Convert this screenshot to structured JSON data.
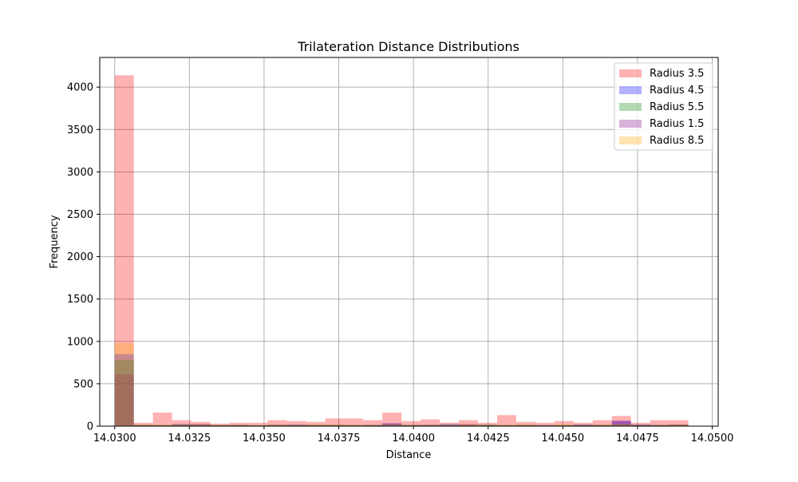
{
  "chart_data": {
    "type": "bar",
    "title": "Trilateration Distance Distributions",
    "xlabel": "Distance",
    "ylabel": "Frequency",
    "xlim": [
      14.0295,
      14.0502
    ],
    "ylim": [
      0,
      4350
    ],
    "xticks": [
      14.03,
      14.0325,
      14.035,
      14.0375,
      14.04,
      14.0425,
      14.045,
      14.0475,
      14.05
    ],
    "xtick_labels": [
      "14.0300",
      "14.0325",
      "14.0350",
      "14.0375",
      "14.0400",
      "14.0425",
      "14.0450",
      "14.0475",
      "14.0500"
    ],
    "yticks": [
      0,
      500,
      1000,
      1500,
      2000,
      2500,
      3000,
      3500,
      4000
    ],
    "ytick_labels": [
      "0",
      "500",
      "1000",
      "1500",
      "2000",
      "2500",
      "3000",
      "3500",
      "4000"
    ],
    "grid": true,
    "legend_position": "top-right",
    "bin_edges": [
      14.03,
      14.03064,
      14.03128,
      14.03192,
      14.03256,
      14.0332,
      14.03384,
      14.03448,
      14.03512,
      14.03576,
      14.0364,
      14.03704,
      14.03768,
      14.03832,
      14.03896,
      14.0396,
      14.04024,
      14.04088,
      14.04152,
      14.04216,
      14.0428,
      14.04344,
      14.04408,
      14.04472,
      14.04536,
      14.046,
      14.04664,
      14.04728,
      14.04792,
      14.04856,
      14.0492
    ],
    "series": [
      {
        "name": "Radius 3.5",
        "color": "#ff0000",
        "alpha": 0.3,
        "values": [
          4140,
          40,
          160,
          70,
          50,
          30,
          40,
          40,
          70,
          60,
          50,
          90,
          90,
          70,
          160,
          60,
          80,
          40,
          70,
          40,
          130,
          50,
          40,
          60,
          40,
          70,
          120,
          40,
          70,
          70
        ]
      },
      {
        "name": "Radius 4.5",
        "color": "#0000ff",
        "alpha": 0.3,
        "values": [
          850,
          15,
          10,
          25,
          20,
          10,
          15,
          10,
          15,
          20,
          15,
          15,
          10,
          15,
          30,
          15,
          15,
          25,
          15,
          15,
          10,
          15,
          15,
          10,
          20,
          15,
          60,
          20,
          15,
          15
        ]
      },
      {
        "name": "Radius 5.5",
        "color": "#008000",
        "alpha": 0.3,
        "values": [
          780,
          15,
          15,
          20,
          15,
          15,
          15,
          10,
          15,
          15,
          15,
          15,
          15,
          15,
          20,
          15,
          15,
          15,
          15,
          20,
          15,
          15,
          10,
          15,
          15,
          15,
          25,
          15,
          15,
          20
        ]
      },
      {
        "name": "Radius 1.5",
        "color": "#800080",
        "alpha": 0.3,
        "values": [
          610,
          10,
          10,
          15,
          25,
          10,
          10,
          10,
          15,
          10,
          10,
          10,
          10,
          10,
          35,
          10,
          15,
          10,
          25,
          10,
          10,
          10,
          10,
          10,
          15,
          10,
          65,
          15,
          10,
          20
        ]
      },
      {
        "name": "Radius 8.5",
        "color": "#ffa500",
        "alpha": 0.3,
        "values": [
          980,
          20,
          15,
          20,
          20,
          15,
          15,
          15,
          20,
          15,
          20,
          20,
          15,
          15,
          20,
          15,
          15,
          15,
          20,
          15,
          15,
          20,
          15,
          20,
          15,
          20,
          20,
          15,
          15,
          20
        ]
      }
    ]
  }
}
